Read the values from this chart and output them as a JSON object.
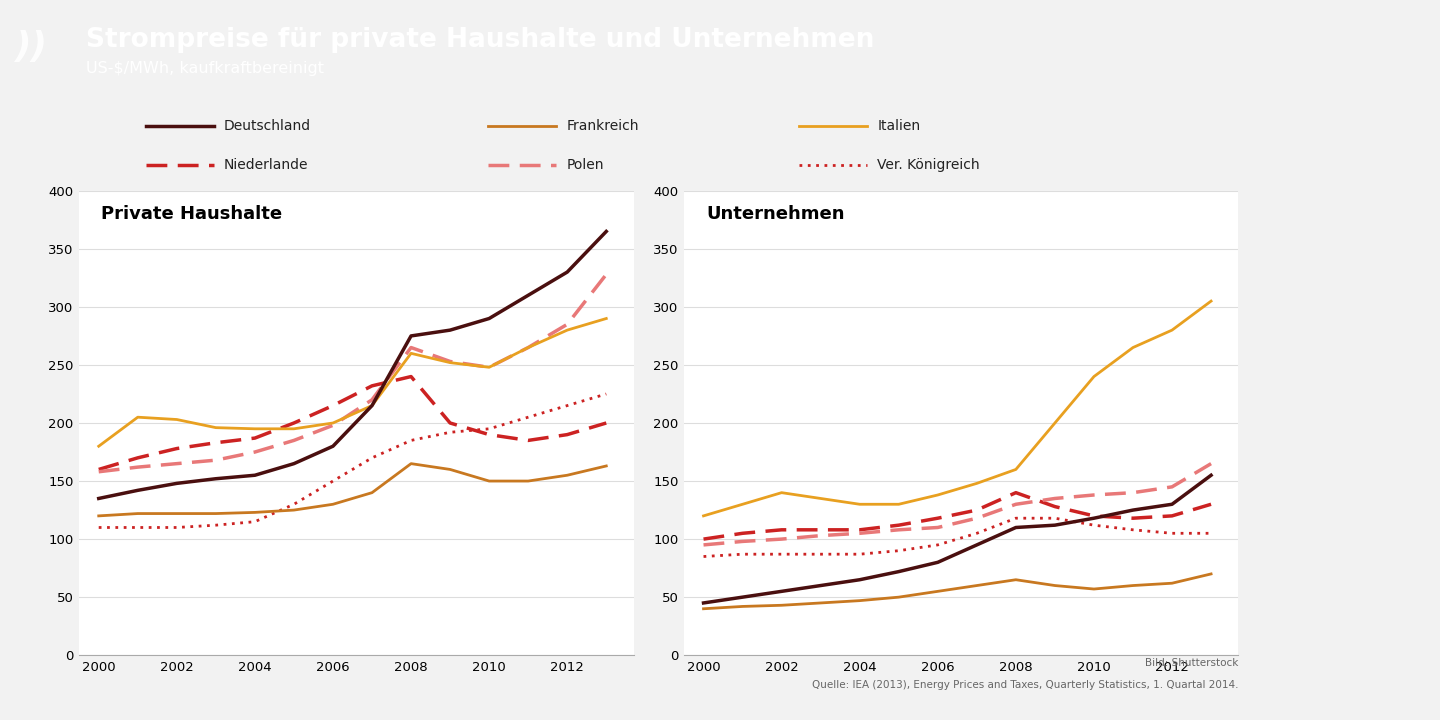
{
  "title": "Strompreise für private Haushalte und Unternehmen",
  "subtitle": "US-$/MWh, kaufkraftbereinigt",
  "header_bg": "#3aafa9",
  "bg_color": "#f0f0f0",
  "years": [
    2000,
    2001,
    2002,
    2003,
    2004,
    2005,
    2006,
    2007,
    2008,
    2009,
    2010,
    2011,
    2012,
    2013
  ],
  "household": {
    "deutschland": [
      135,
      142,
      148,
      152,
      155,
      165,
      180,
      215,
      275,
      280,
      290,
      310,
      330,
      365
    ],
    "frankreich": [
      120,
      122,
      122,
      122,
      123,
      125,
      130,
      140,
      165,
      160,
      150,
      150,
      155,
      163
    ],
    "italien": [
      180,
      205,
      203,
      196,
      195,
      195,
      200,
      215,
      260,
      252,
      248,
      265,
      280,
      290
    ],
    "niederlande": [
      160,
      170,
      178,
      183,
      187,
      200,
      215,
      232,
      240,
      200,
      190,
      185,
      190,
      200
    ],
    "polen": [
      158,
      162,
      165,
      168,
      175,
      185,
      198,
      220,
      265,
      253,
      248,
      265,
      285,
      328
    ],
    "uk": [
      110,
      110,
      110,
      112,
      115,
      130,
      150,
      170,
      185,
      192,
      195,
      205,
      215,
      225
    ]
  },
  "business": {
    "deutschland": [
      45,
      50,
      55,
      60,
      65,
      72,
      80,
      95,
      110,
      112,
      118,
      125,
      130,
      155
    ],
    "frankreich": [
      40,
      42,
      43,
      45,
      47,
      50,
      55,
      60,
      65,
      60,
      57,
      60,
      62,
      70
    ],
    "italien": [
      120,
      130,
      140,
      135,
      130,
      130,
      138,
      148,
      160,
      200,
      240,
      265,
      280,
      305
    ],
    "niederlande": [
      100,
      105,
      108,
      108,
      108,
      112,
      118,
      125,
      140,
      128,
      120,
      118,
      120,
      130
    ],
    "polen": [
      95,
      98,
      100,
      103,
      105,
      108,
      110,
      118,
      130,
      135,
      138,
      140,
      145,
      165
    ],
    "uk": [
      85,
      87,
      87,
      87,
      87,
      90,
      95,
      105,
      118,
      118,
      112,
      108,
      105,
      105
    ]
  },
  "colors": {
    "deutschland": "#4a0f0f",
    "frankreich": "#c87820",
    "italien": "#e8a020",
    "niederlande": "#cc2222",
    "polen": "#e87878",
    "uk": "#cc2222"
  },
  "legend_items": [
    {
      "label": "Deutschland",
      "color": "#4a0f0f",
      "ls": "solid",
      "lw": 2.5,
      "row": 0,
      "col": 0
    },
    {
      "label": "Frankreich",
      "color": "#c87820",
      "ls": "solid",
      "lw": 2.0,
      "row": 0,
      "col": 1
    },
    {
      "label": "Italien",
      "color": "#e8a020",
      "ls": "solid",
      "lw": 2.0,
      "row": 0,
      "col": 2
    },
    {
      "label": "Niederlande",
      "color": "#cc2222",
      "ls": "dashed",
      "lw": 2.5,
      "row": 1,
      "col": 0
    },
    {
      "label": "Polen",
      "color": "#e87878",
      "ls": "dashed",
      "lw": 2.5,
      "row": 1,
      "col": 1
    },
    {
      "label": "Ver. Königreich",
      "color": "#cc2222",
      "ls": "dotted",
      "lw": 2.0,
      "row": 1,
      "col": 2
    }
  ],
  "source_text": "Quelle: IEA (2013), Energy Prices and Taxes, Quarterly Statistics, 1. Quartal 2014.",
  "bild_text": "Bild: Shutterstock"
}
